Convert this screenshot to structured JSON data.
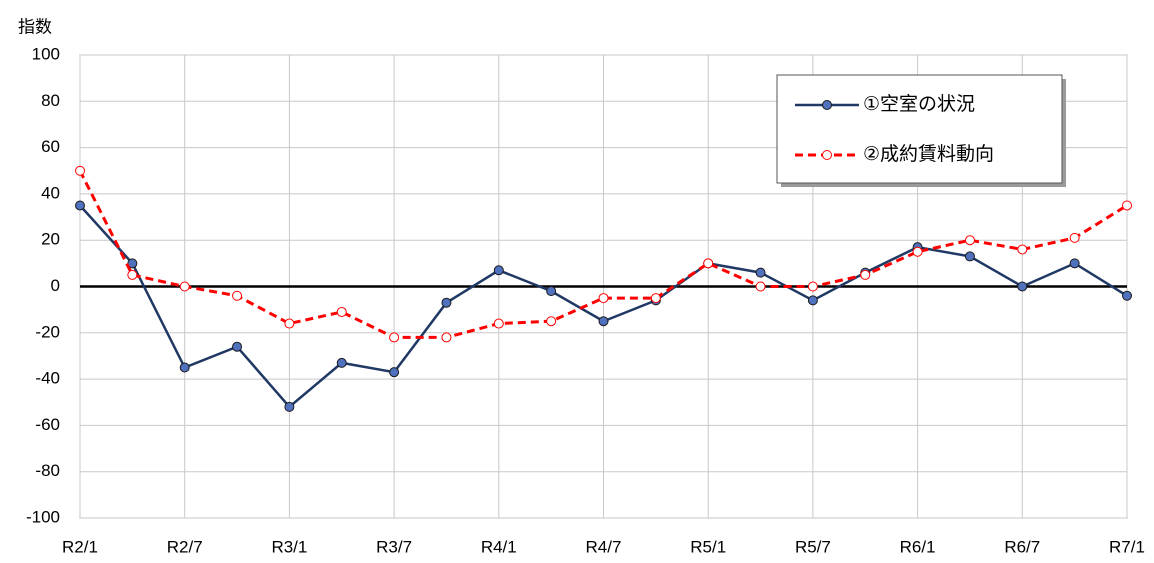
{
  "chart_data": {
    "type": "line",
    "ylabel": "指数",
    "categories": [
      "R2/1",
      null,
      "R2/7",
      null,
      "R3/1",
      null,
      "R3/7",
      null,
      "R4/1",
      null,
      "R4/7",
      null,
      "R5/1",
      null,
      "R5/7",
      null,
      "R6/1",
      null,
      "R6/7",
      null,
      "R7/1"
    ],
    "series": [
      {
        "name": "①空室の状況",
        "color": "#1f3864",
        "marker_fill": "#4f71be",
        "dashed": false,
        "values": [
          35,
          10,
          -35,
          -26,
          -52,
          -33,
          -37,
          -7,
          7,
          -2,
          -15,
          -6,
          10,
          6,
          -6,
          6,
          17,
          13,
          0,
          10,
          -4
        ]
      },
      {
        "name": "②成約賃料動向",
        "color": "#ff0000",
        "marker_fill": "#ffffff",
        "dashed": true,
        "values": [
          50,
          5,
          0,
          -4,
          -16,
          -11,
          -22,
          -22,
          -16,
          -15,
          -5,
          -5,
          10,
          0,
          0,
          5,
          15,
          20,
          16,
          21,
          35
        ]
      }
    ],
    "ylim": [
      -100,
      100
    ],
    "yticks": [
      -100,
      -80,
      -60,
      -40,
      -20,
      0,
      20,
      40,
      60,
      80,
      100
    ],
    "grid": true
  }
}
